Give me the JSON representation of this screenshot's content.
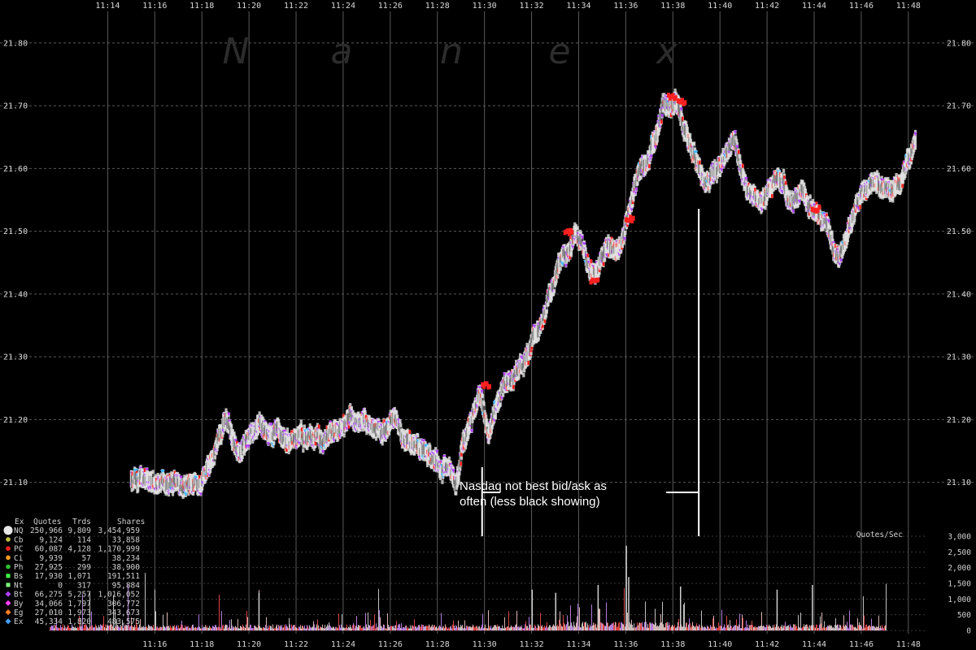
{
  "chart_data": {
    "type": "scatter",
    "title": "",
    "watermark": [
      "N",
      "a",
      "n",
      "e",
      "x"
    ],
    "x_ticks_top": [
      "11:14",
      "11:16",
      "11:18",
      "11:20",
      "11:22",
      "11:24",
      "11:26",
      "11:28",
      "11:30",
      "11:32",
      "11:34",
      "11:36",
      "11:38",
      "11:40",
      "11:42",
      "11:44",
      "11:46",
      "11:48"
    ],
    "x_ticks_bottom": [
      "11:16",
      "11:18",
      "11:20",
      "11:22",
      "11:24",
      "11:26",
      "11:28",
      "11:30",
      "11:32",
      "11:34",
      "11:36",
      "11:38",
      "11:40",
      "11:42",
      "11:44",
      "11:46",
      "11:48"
    ],
    "y_ticks": [
      "21.10",
      "21.20",
      "21.30",
      "21.40",
      "21.50",
      "21.60",
      "21.70",
      "21.80"
    ],
    "ylim": [
      21.04,
      21.84
    ],
    "xlim_minutes": [
      11.5,
      48.8
    ],
    "price_path": [
      {
        "t": 15.0,
        "p": 21.1
      },
      {
        "t": 16.0,
        "p": 21.1
      },
      {
        "t": 17.0,
        "p": 21.11
      },
      {
        "t": 18.0,
        "p": 21.1
      },
      {
        "t": 18.6,
        "p": 21.15
      },
      {
        "t": 19.0,
        "p": 21.2
      },
      {
        "t": 19.6,
        "p": 21.14
      },
      {
        "t": 20.4,
        "p": 21.19
      },
      {
        "t": 21.2,
        "p": 21.18
      },
      {
        "t": 22.2,
        "p": 21.17
      },
      {
        "t": 23.2,
        "p": 21.17
      },
      {
        "t": 24.4,
        "p": 21.2
      },
      {
        "t": 25.2,
        "p": 21.18
      },
      {
        "t": 26.2,
        "p": 21.2
      },
      {
        "t": 26.8,
        "p": 21.16
      },
      {
        "t": 27.6,
        "p": 21.14
      },
      {
        "t": 28.4,
        "p": 21.12
      },
      {
        "t": 28.8,
        "p": 21.11
      },
      {
        "t": 29.4,
        "p": 21.2
      },
      {
        "t": 29.8,
        "p": 21.25
      },
      {
        "t": 30.2,
        "p": 21.18
      },
      {
        "t": 30.8,
        "p": 21.26
      },
      {
        "t": 31.4,
        "p": 21.28
      },
      {
        "t": 32.0,
        "p": 21.31
      },
      {
        "t": 32.6,
        "p": 21.38
      },
      {
        "t": 33.4,
        "p": 21.47
      },
      {
        "t": 34.0,
        "p": 21.49
      },
      {
        "t": 34.6,
        "p": 21.43
      },
      {
        "t": 35.2,
        "p": 21.48
      },
      {
        "t": 35.8,
        "p": 21.47
      },
      {
        "t": 36.4,
        "p": 21.57
      },
      {
        "t": 37.0,
        "p": 21.62
      },
      {
        "t": 37.6,
        "p": 21.7
      },
      {
        "t": 38.2,
        "p": 21.71
      },
      {
        "t": 38.8,
        "p": 21.63
      },
      {
        "t": 39.4,
        "p": 21.59
      },
      {
        "t": 40.0,
        "p": 21.6
      },
      {
        "t": 40.6,
        "p": 21.64
      },
      {
        "t": 41.2,
        "p": 21.56
      },
      {
        "t": 41.8,
        "p": 21.55
      },
      {
        "t": 42.4,
        "p": 21.59
      },
      {
        "t": 43.0,
        "p": 21.56
      },
      {
        "t": 43.6,
        "p": 21.55
      },
      {
        "t": 44.2,
        "p": 21.52
      },
      {
        "t": 44.8,
        "p": 21.47
      },
      {
        "t": 45.2,
        "p": 21.46
      },
      {
        "t": 45.8,
        "p": 21.54
      },
      {
        "t": 46.4,
        "p": 21.58
      },
      {
        "t": 47.0,
        "p": 21.57
      },
      {
        "t": 47.6,
        "p": 21.58
      },
      {
        "t": 48.3,
        "p": 21.64
      }
    ],
    "annotation": {
      "lines": [
        "Nasdaq not best bid/ask as",
        "often (less black showing)"
      ],
      "bracket_start_time": 29.9,
      "bracket_end_time": 39.1
    },
    "volume_axis": {
      "label": "Quotes/Sec",
      "ticks": [
        "3,000",
        "2,500",
        "2,000",
        "1,500",
        "1,000",
        "500",
        "0"
      ],
      "values": [
        3000,
        2500,
        2000,
        1500,
        1000,
        500,
        0
      ]
    },
    "legend": {
      "header": [
        "Ex",
        "Quotes",
        "Trds",
        "Shares"
      ],
      "rows": [
        {
          "ex": "NQ",
          "quotes": "250,966",
          "trds": "9,809",
          "shares": "3,454,959",
          "color": "#e8e8e8",
          "shape": "circle"
        },
        {
          "ex": "Cb",
          "quotes": "9,124",
          "trds": "114",
          "shares": "33,858",
          "color": "#c0c040",
          "shape": "circle"
        },
        {
          "ex": "PC",
          "quotes": "60,087",
          "trds": "4,128",
          "shares": "1,170,999",
          "color": "#ff2020",
          "shape": "circle"
        },
        {
          "ex": "Ci",
          "quotes": "9,939",
          "trds": "57",
          "shares": "38,234",
          "color": "#ff9f20",
          "shape": "circle"
        },
        {
          "ex": "Ph",
          "quotes": "27,925",
          "trds": "299",
          "shares": "38,900",
          "color": "#30c030",
          "shape": "circle"
        },
        {
          "ex": "Bs",
          "quotes": "17,930",
          "trds": "1,071",
          "shares": "191,511",
          "color": "#40ff40",
          "shape": "square"
        },
        {
          "ex": "Nt",
          "quotes": "0",
          "trds": "317",
          "shares": "95,884",
          "color": "#80ff80",
          "shape": "square"
        },
        {
          "ex": "Bt",
          "quotes": "66,275",
          "trds": "5,257",
          "shares": "1,016,052",
          "color": "#b040ff",
          "shape": "diamond"
        },
        {
          "ex": "By",
          "quotes": "34,066",
          "trds": "1,797",
          "shares": "306,772",
          "color": "#ff40ff",
          "shape": "diamond"
        },
        {
          "ex": "Eg",
          "quotes": "27,010",
          "trds": "1,973",
          "shares": "343,673",
          "color": "#ff8020",
          "shape": "diamond"
        },
        {
          "ex": "Ex",
          "quotes": "45,334",
          "trds": "1,820",
          "shares": "483,575",
          "color": "#40a0ff",
          "shape": "diamond"
        }
      ]
    },
    "colors": {
      "background": "#000000",
      "grid": "#5a5a5a",
      "nasdaq": "#e0e0e0",
      "gap": "#3a3a3a",
      "bats_bzx": "#b040ff",
      "nsx": "#ff2020",
      "edgx": "#40b8ff",
      "annotation": "#ffffff",
      "volume": "#d8d8d8"
    }
  }
}
